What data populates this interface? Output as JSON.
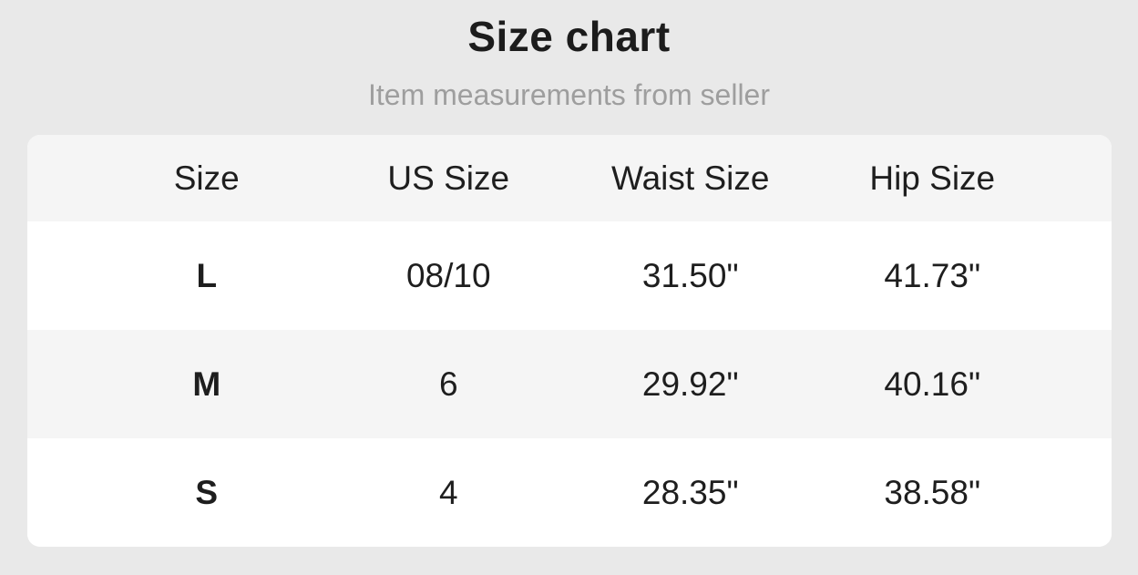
{
  "page": {
    "title": "Size chart",
    "subtitle": "Item measurements from seller"
  },
  "table": {
    "columns": [
      "Size",
      "US Size",
      "Waist Size",
      "Hip Size"
    ],
    "rows": [
      {
        "size": "L",
        "us_size": "08/10",
        "waist_size": "31.50\"",
        "hip_size": "41.73\""
      },
      {
        "size": "M",
        "us_size": "6",
        "waist_size": "29.92\"",
        "hip_size": "40.16\""
      },
      {
        "size": "S",
        "us_size": "4",
        "waist_size": "28.35\"",
        "hip_size": "38.58\""
      }
    ]
  },
  "colors": {
    "background": "#e9e9e9",
    "card_background": "#ffffff",
    "stripe_background": "#f5f5f5",
    "title_text": "#1c1c1c",
    "subtitle_text": "#9e9e9e",
    "cell_text": "#1e1e1e"
  }
}
